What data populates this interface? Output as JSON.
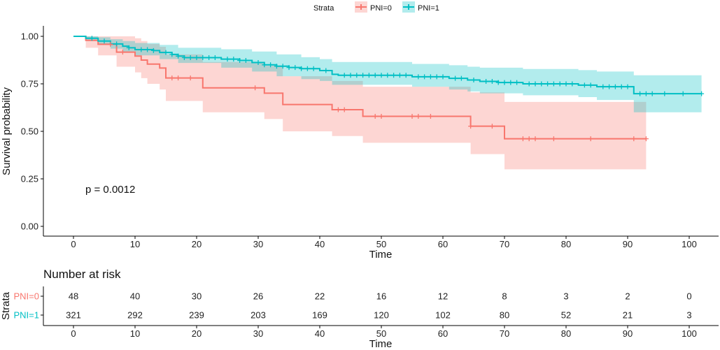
{
  "chart_data": {
    "type": "line",
    "subtype": "kaplan-meier",
    "xlabel": "Time",
    "ylabel": "Survival probability",
    "xlim": [
      -5,
      105
    ],
    "ylim": [
      -0.05,
      1.05
    ],
    "x_ticks": [
      "0",
      "10",
      "20",
      "30",
      "40",
      "50",
      "60",
      "70",
      "80",
      "90",
      "100"
    ],
    "y_ticks": [
      "0.00",
      "0.25",
      "0.50",
      "0.75",
      "1.00"
    ],
    "legend_title": "Strata",
    "legend_position": "top",
    "annotation": "p = 0.0012",
    "series": [
      {
        "name": "PNI=0",
        "color": "#F8766D",
        "fill": "#F8766D",
        "steps": [
          [
            0,
            1.0
          ],
          [
            2,
            0.979
          ],
          [
            4,
            0.958
          ],
          [
            7,
            0.917
          ],
          [
            10,
            0.896
          ],
          [
            11,
            0.875
          ],
          [
            12,
            0.854
          ],
          [
            14,
            0.833
          ],
          [
            15,
            0.781
          ],
          [
            19,
            0.781
          ],
          [
            21,
            0.729
          ],
          [
            29,
            0.729
          ],
          [
            31,
            0.701
          ],
          [
            34,
            0.641
          ],
          [
            42,
            0.614
          ],
          [
            47,
            0.579
          ],
          [
            64,
            0.579
          ],
          [
            64.5,
            0.527
          ],
          [
            70,
            0.461
          ],
          [
            93,
            0.461
          ]
        ],
        "upper": [
          [
            0,
            1.0
          ],
          [
            2,
            1.0
          ],
          [
            4,
            1.0
          ],
          [
            7,
            1.0
          ],
          [
            10,
            0.99
          ],
          [
            11,
            0.975
          ],
          [
            12,
            0.96
          ],
          [
            14,
            0.945
          ],
          [
            15,
            0.905
          ],
          [
            21,
            0.865
          ],
          [
            31,
            0.845
          ],
          [
            34,
            0.79
          ],
          [
            42,
            0.765
          ],
          [
            47,
            0.735
          ],
          [
            64.5,
            0.705
          ],
          [
            70,
            0.655
          ],
          [
            93,
            0.655
          ]
        ],
        "lower": [
          [
            0,
            1.0
          ],
          [
            2,
            0.94
          ],
          [
            4,
            0.9
          ],
          [
            7,
            0.84
          ],
          [
            10,
            0.81
          ],
          [
            11,
            0.78
          ],
          [
            12,
            0.75
          ],
          [
            14,
            0.72
          ],
          [
            15,
            0.66
          ],
          [
            21,
            0.6
          ],
          [
            31,
            0.565
          ],
          [
            34,
            0.5
          ],
          [
            42,
            0.475
          ],
          [
            47,
            0.44
          ],
          [
            64,
            0.44
          ],
          [
            64.5,
            0.38
          ],
          [
            70,
            0.3
          ],
          [
            93,
            0.3
          ]
        ],
        "censor_times": [
          6,
          8,
          16,
          17,
          19,
          29.5,
          43,
          44,
          49,
          50,
          55,
          56,
          58,
          64.5,
          68,
          73,
          74,
          75,
          78,
          84,
          91,
          93
        ],
        "at_risk": [
          48,
          40,
          30,
          26,
          22,
          16,
          12,
          8,
          3,
          2,
          0
        ],
        "legend_label": "PNI=0"
      },
      {
        "name": "PNI=1",
        "color": "#00BFC4",
        "fill": "#00BFC4",
        "steps": [
          [
            0,
            1.0
          ],
          [
            2,
            0.99
          ],
          [
            4,
            0.975
          ],
          [
            6,
            0.96
          ],
          [
            8,
            0.948
          ],
          [
            9,
            0.94
          ],
          [
            10,
            0.93
          ],
          [
            13,
            0.925
          ],
          [
            14,
            0.915
          ],
          [
            16,
            0.905
          ],
          [
            17,
            0.896
          ],
          [
            18,
            0.888
          ],
          [
            24,
            0.88
          ],
          [
            27,
            0.873
          ],
          [
            29,
            0.862
          ],
          [
            31,
            0.85
          ],
          [
            33,
            0.843
          ],
          [
            35,
            0.836
          ],
          [
            37,
            0.83
          ],
          [
            40,
            0.82
          ],
          [
            42,
            0.8
          ],
          [
            43,
            0.795
          ],
          [
            55,
            0.787
          ],
          [
            61,
            0.779
          ],
          [
            64,
            0.77
          ],
          [
            66,
            0.763
          ],
          [
            69,
            0.757
          ],
          [
            73,
            0.75
          ],
          [
            82,
            0.743
          ],
          [
            85,
            0.735
          ],
          [
            91,
            0.698
          ],
          [
            102,
            0.698
          ]
        ],
        "upper": [
          [
            0,
            1.0
          ],
          [
            2,
            1.0
          ],
          [
            4,
            0.995
          ],
          [
            6,
            0.985
          ],
          [
            8,
            0.975
          ],
          [
            10,
            0.965
          ],
          [
            14,
            0.955
          ],
          [
            17,
            0.94
          ],
          [
            24,
            0.932
          ],
          [
            29,
            0.92
          ],
          [
            33,
            0.905
          ],
          [
            37,
            0.89
          ],
          [
            40,
            0.88
          ],
          [
            42,
            0.865
          ],
          [
            55,
            0.855
          ],
          [
            61,
            0.848
          ],
          [
            64,
            0.84
          ],
          [
            66,
            0.835
          ],
          [
            73,
            0.828
          ],
          [
            82,
            0.822
          ],
          [
            85,
            0.815
          ],
          [
            91,
            0.795
          ],
          [
            102,
            0.795
          ]
        ],
        "lower": [
          [
            0,
            1.0
          ],
          [
            2,
            0.975
          ],
          [
            4,
            0.955
          ],
          [
            6,
            0.935
          ],
          [
            8,
            0.92
          ],
          [
            10,
            0.9
          ],
          [
            14,
            0.88
          ],
          [
            17,
            0.86
          ],
          [
            24,
            0.835
          ],
          [
            29,
            0.815
          ],
          [
            33,
            0.79
          ],
          [
            37,
            0.775
          ],
          [
            40,
            0.765
          ],
          [
            42,
            0.745
          ],
          [
            55,
            0.735
          ],
          [
            61,
            0.72
          ],
          [
            64,
            0.71
          ],
          [
            66,
            0.7
          ],
          [
            73,
            0.69
          ],
          [
            82,
            0.68
          ],
          [
            85,
            0.665
          ],
          [
            91,
            0.6
          ],
          [
            102,
            0.6
          ]
        ],
        "censor_times": [
          3,
          5,
          7,
          9,
          11,
          12,
          13,
          15,
          16,
          17,
          18,
          19,
          20,
          21,
          22,
          23,
          25,
          26,
          27,
          28,
          30,
          31,
          32,
          33,
          34,
          35,
          36,
          37,
          38,
          39,
          41,
          44,
          45,
          46,
          47,
          48,
          49,
          50,
          51,
          52,
          53,
          54,
          56,
          57,
          58,
          59,
          60,
          62,
          63,
          65,
          67,
          68,
          69,
          70,
          71,
          72,
          74,
          75,
          76,
          77,
          78,
          79,
          80,
          81,
          83,
          84,
          86,
          87,
          88,
          89,
          90,
          92,
          93,
          94,
          96,
          99,
          102
        ],
        "at_risk": [
          321,
          292,
          239,
          203,
          169,
          120,
          102,
          80,
          52,
          21,
          3
        ],
        "legend_label": "PNI=1"
      }
    ],
    "risk_table": {
      "title": "Number at risk",
      "ylabel": "Strata",
      "xlabel": "Time",
      "times": [
        0,
        10,
        20,
        30,
        40,
        50,
        60,
        70,
        80,
        90,
        100
      ],
      "x_ticks": [
        "0",
        "10",
        "20",
        "30",
        "40",
        "50",
        "60",
        "70",
        "80",
        "90",
        "100"
      ],
      "row_labels": [
        "PNI=0",
        "PNI=1"
      ]
    }
  }
}
